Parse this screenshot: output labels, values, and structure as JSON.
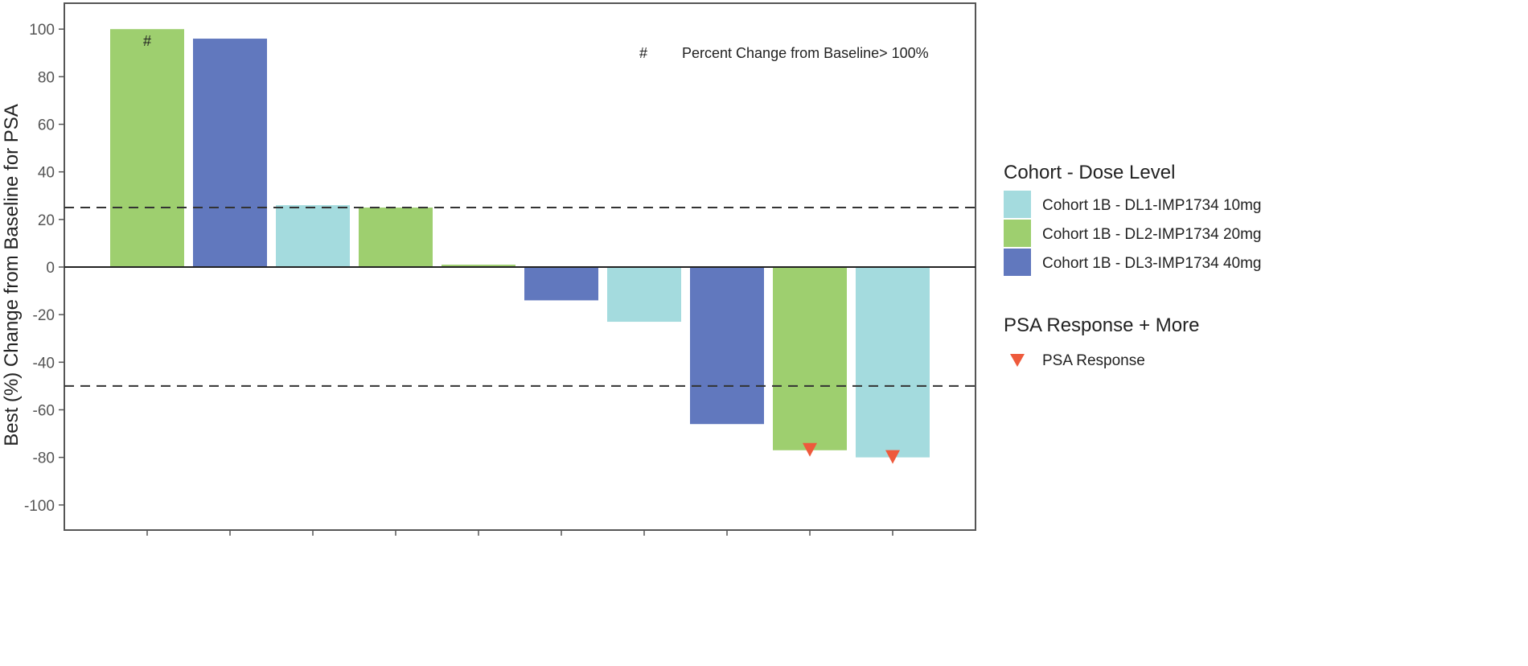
{
  "chart_data": {
    "type": "bar",
    "ylabel": "Best (%) Change from Baseline for PSA",
    "xlabel": "",
    "ylim": [
      -110,
      110
    ],
    "yticks": [
      100,
      80,
      60,
      40,
      20,
      0,
      -20,
      -40,
      -60,
      -80,
      -100
    ],
    "grid": false,
    "reference_lines": [
      25,
      -50
    ],
    "bars": [
      {
        "value": 100,
        "cohort": "Cohort 1B - DL2-IMP1734 20mg",
        "marker": "#",
        "psa_response": false
      },
      {
        "value": 96,
        "cohort": "Cohort 1B - DL3-IMP1734 40mg",
        "psa_response": false
      },
      {
        "value": 26,
        "cohort": "Cohort 1B - DL1-IMP1734 10mg",
        "psa_response": false
      },
      {
        "value": 25,
        "cohort": "Cohort 1B - DL2-IMP1734 20mg",
        "psa_response": false
      },
      {
        "value": 1,
        "cohort": "Cohort 1B - DL2-IMP1734 20mg",
        "psa_response": false
      },
      {
        "value": -14,
        "cohort": "Cohort 1B - DL3-IMP1734 40mg",
        "psa_response": false
      },
      {
        "value": -23,
        "cohort": "Cohort 1B - DL1-IMP1734 10mg",
        "psa_response": false
      },
      {
        "value": -66,
        "cohort": "Cohort 1B - DL3-IMP1734 40mg",
        "psa_response": false
      },
      {
        "value": -77,
        "cohort": "Cohort 1B - DL2-IMP1734 20mg",
        "psa_response": true
      },
      {
        "value": -80,
        "cohort": "Cohort 1B - DL1-IMP1734 10mg",
        "psa_response": true
      }
    ],
    "annotation": {
      "symbol": "#",
      "text": "Percent Change from Baseline> 100%"
    },
    "legend": {
      "placement": "right",
      "cohort_title": "Cohort - Dose Level",
      "cohorts": [
        {
          "name": "Cohort 1B - DL1-IMP1734 10mg",
          "color": "#a4dbde"
        },
        {
          "name": "Cohort 1B - DL2-IMP1734 20mg",
          "color": "#9ecf6f"
        },
        {
          "name": "Cohort 1B - DL3-IMP1734 40mg",
          "color": "#6178be"
        }
      ],
      "response_title": "PSA Response + More",
      "response_label": "PSA Response",
      "response_color": "#ee5a3c"
    }
  }
}
